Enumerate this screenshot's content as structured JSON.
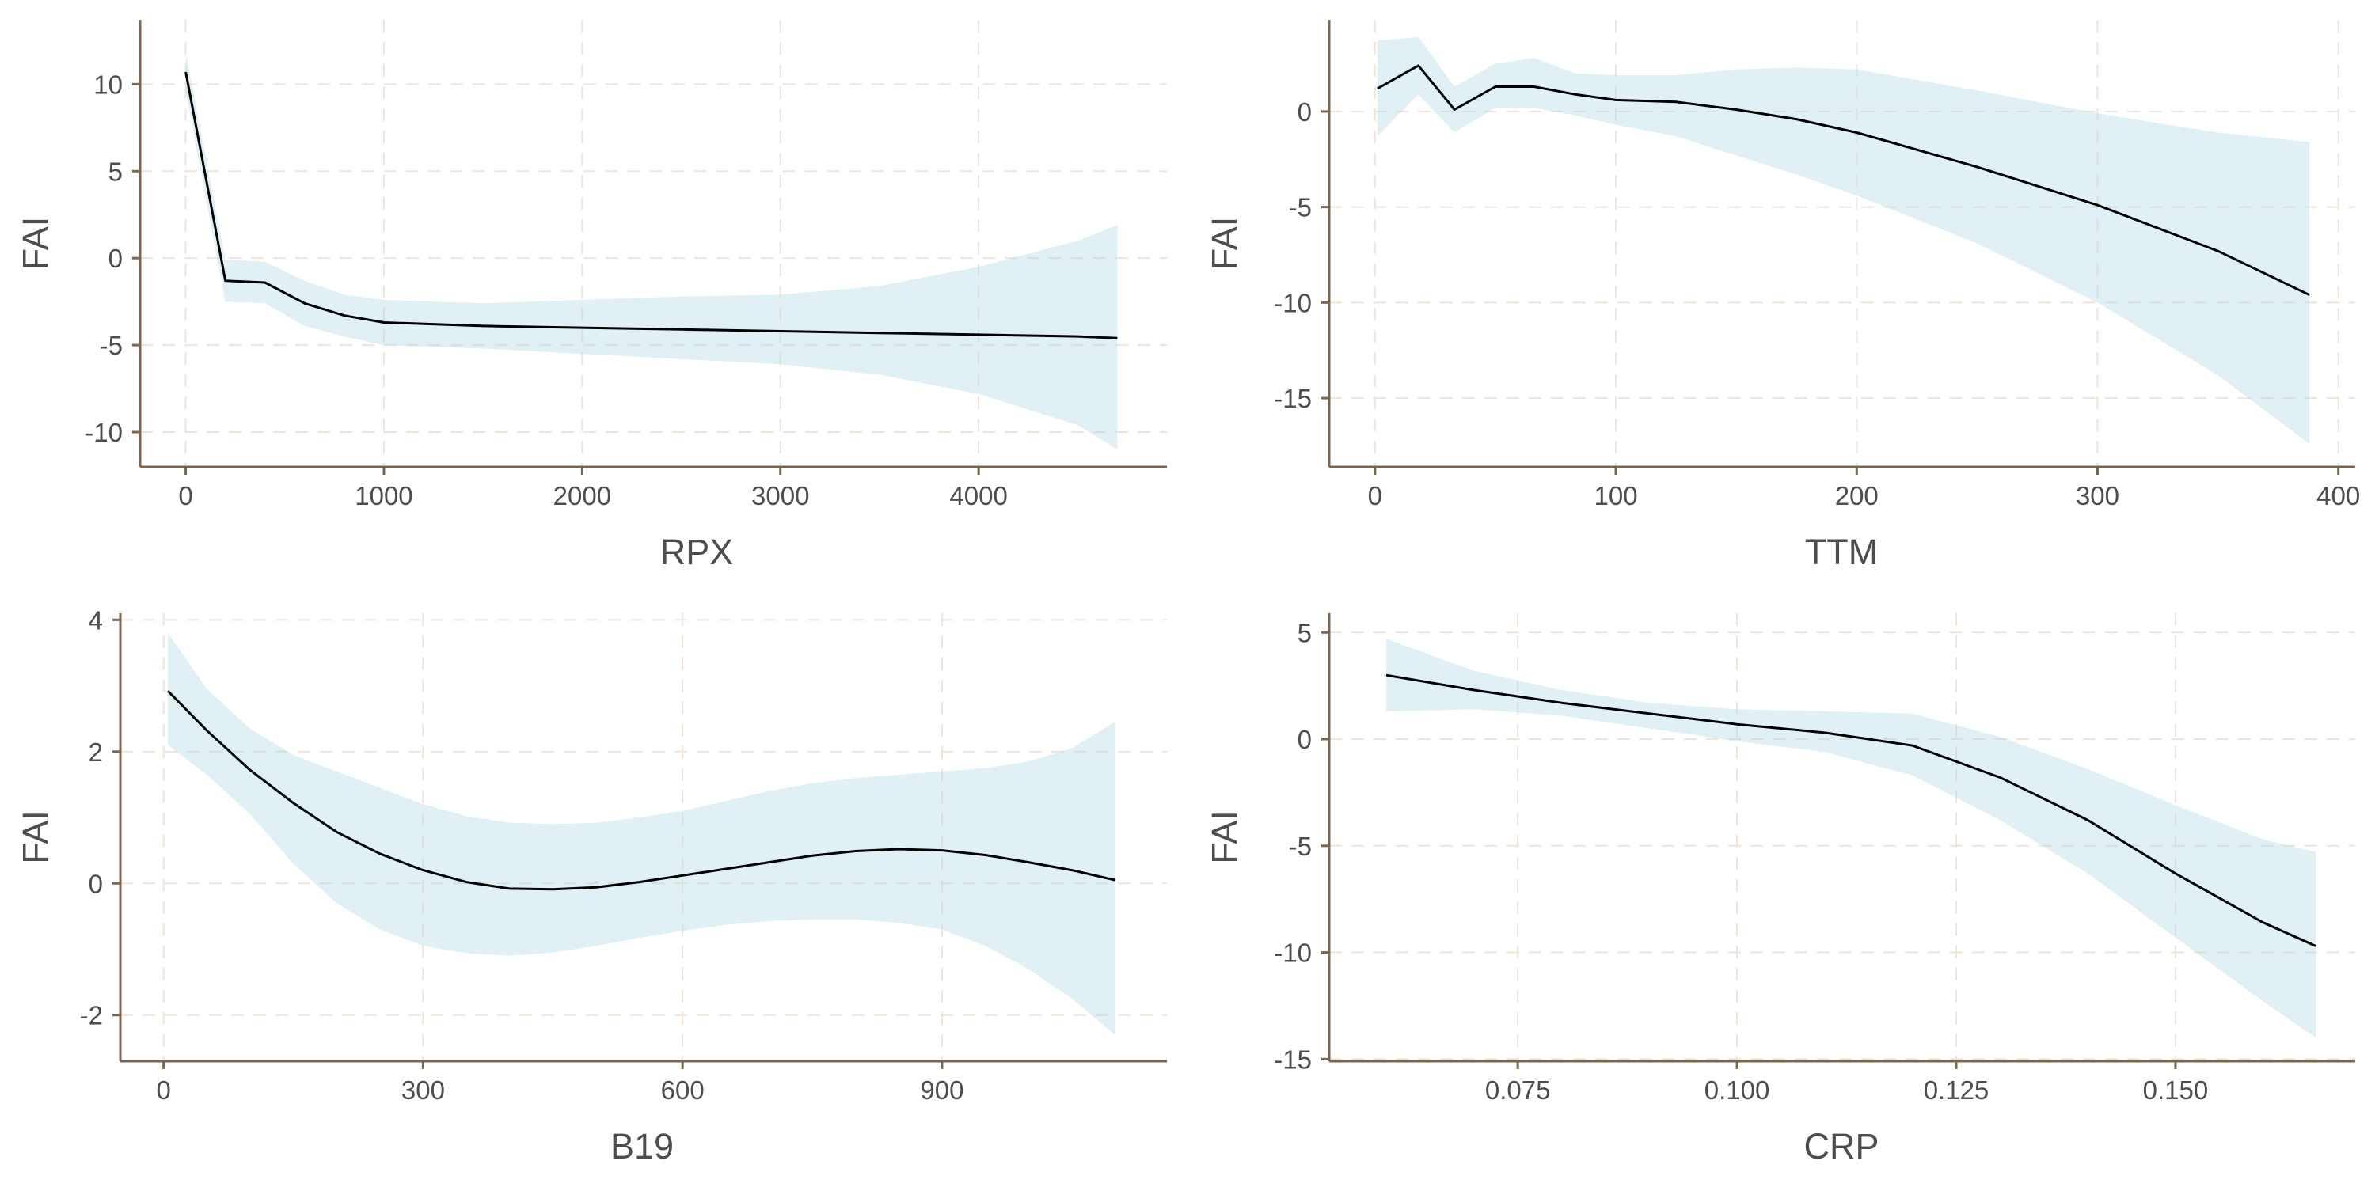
{
  "style": {
    "ribbon_color": "#add8e6",
    "ribbon_opacity": 0.38,
    "line_color": "#000000",
    "grid_color": "#f1e4d8",
    "axis_color": "#7a6650",
    "text_color": "#4d4d4d",
    "background": "#ffffff"
  },
  "chart_data": [
    {
      "type": "line",
      "title": "",
      "xlabel": "RPX",
      "ylabel": "FAI",
      "grid": true,
      "legend": "none",
      "xlim": [
        -230,
        4950
      ],
      "ylim": [
        -12,
        13.7
      ],
      "xticks": [
        0,
        1000,
        2000,
        3000,
        4000
      ],
      "xtick_labels": [
        "0",
        "1000",
        "2000",
        "3000",
        "4000"
      ],
      "yticks": [
        10,
        5,
        0,
        -5,
        -10
      ],
      "ytick_labels": [
        "10",
        "5",
        "0",
        "-5",
        "-10"
      ],
      "series": [
        {
          "x": [
            0,
            200,
            400,
            600,
            800,
            1000,
            1500,
            2000,
            2500,
            3000,
            3500,
            4000,
            4500,
            4700
          ],
          "y": [
            10.7,
            -1.3,
            -1.4,
            -2.6,
            -3.3,
            -3.7,
            -3.9,
            -4.0,
            -4.1,
            -4.2,
            -4.3,
            -4.4,
            -4.5,
            -4.6
          ],
          "lower": [
            9.6,
            -2.5,
            -2.6,
            -3.9,
            -4.5,
            -5.0,
            -5.2,
            -5.5,
            -5.8,
            -6.1,
            -6.7,
            -7.8,
            -9.6,
            -11.0
          ],
          "upper": [
            11.8,
            -0.1,
            -0.2,
            -1.3,
            -2.1,
            -2.4,
            -2.6,
            -2.4,
            -2.2,
            -2.1,
            -1.6,
            -0.5,
            1.0,
            1.9
          ]
        }
      ]
    },
    {
      "type": "line",
      "title": "",
      "xlabel": "TTM",
      "ylabel": "FAI",
      "grid": true,
      "legend": "none",
      "xlim": [
        -19,
        407
      ],
      "ylim": [
        -18.6,
        4.8
      ],
      "xticks": [
        0,
        100,
        200,
        300,
        400
      ],
      "xtick_labels": [
        "0",
        "100",
        "200",
        "300",
        "400"
      ],
      "yticks": [
        0,
        -5,
        -10,
        -15
      ],
      "ytick_labels": [
        "0",
        "-5",
        "-10",
        "-15"
      ],
      "series": [
        {
          "x": [
            1,
            18,
            33,
            50,
            66,
            83,
            100,
            125,
            150,
            175,
            200,
            250,
            300,
            350,
            388
          ],
          "y": [
            1.2,
            2.4,
            0.1,
            1.3,
            1.3,
            0.9,
            0.6,
            0.5,
            0.1,
            -0.4,
            -1.1,
            -2.9,
            -4.9,
            -7.3,
            -9.6
          ],
          "lower": [
            -1.3,
            0.9,
            -1.1,
            0.2,
            0.2,
            -0.2,
            -0.7,
            -1.3,
            -2.3,
            -3.3,
            -4.4,
            -6.9,
            -10.0,
            -13.8,
            -17.4
          ],
          "upper": [
            3.7,
            3.9,
            1.3,
            2.5,
            2.8,
            2.0,
            1.9,
            1.9,
            2.2,
            2.3,
            2.2,
            1.1,
            -0.1,
            -1.1,
            -1.6
          ]
        }
      ]
    },
    {
      "type": "line",
      "title": "",
      "xlabel": "B19",
      "ylabel": "FAI",
      "grid": true,
      "legend": "none",
      "xlim": [
        -50,
        1160
      ],
      "ylim": [
        -2.7,
        4.1
      ],
      "xticks": [
        0,
        300,
        600,
        900
      ],
      "xtick_labels": [
        "0",
        "300",
        "600",
        "900"
      ],
      "yticks": [
        4,
        2,
        0,
        -2
      ],
      "ytick_labels": [
        "4",
        "2",
        "0",
        "-2"
      ],
      "series": [
        {
          "x": [
            5,
            50,
            100,
            150,
            200,
            250,
            300,
            350,
            400,
            450,
            500,
            550,
            600,
            650,
            700,
            750,
            800,
            850,
            900,
            950,
            1000,
            1050,
            1100
          ],
          "y": [
            2.92,
            2.32,
            1.72,
            1.22,
            0.78,
            0.45,
            0.2,
            0.02,
            -0.08,
            -0.09,
            -0.06,
            0.02,
            0.12,
            0.22,
            0.32,
            0.42,
            0.49,
            0.52,
            0.5,
            0.43,
            0.32,
            0.2,
            0.05
          ],
          "lower": [
            2.1,
            1.65,
            1.05,
            0.3,
            -0.3,
            -0.7,
            -0.95,
            -1.06,
            -1.1,
            -1.05,
            -0.95,
            -0.83,
            -0.72,
            -0.63,
            -0.57,
            -0.55,
            -0.55,
            -0.6,
            -0.7,
            -0.95,
            -1.3,
            -1.75,
            -2.3
          ],
          "upper": [
            3.8,
            2.95,
            2.35,
            1.95,
            1.7,
            1.45,
            1.2,
            1.02,
            0.92,
            0.9,
            0.92,
            1.0,
            1.1,
            1.25,
            1.4,
            1.52,
            1.6,
            1.65,
            1.7,
            1.75,
            1.85,
            2.05,
            2.45
          ]
        }
      ]
    },
    {
      "type": "line",
      "title": "",
      "xlabel": "CRP",
      "ylabel": "FAI",
      "grid": true,
      "legend": "none",
      "xlim": [
        0.0535,
        0.1705
      ],
      "ylim": [
        -15.1,
        5.9
      ],
      "xticks": [
        0.075,
        0.1,
        0.125,
        0.15
      ],
      "xtick_labels": [
        "0.075",
        "0.100",
        "0.125",
        "0.150"
      ],
      "yticks": [
        5,
        0,
        -5,
        -10,
        -15
      ],
      "ytick_labels": [
        "5",
        "0",
        "-5",
        "-10",
        "-15"
      ],
      "series": [
        {
          "x": [
            0.06,
            0.07,
            0.08,
            0.09,
            0.1,
            0.11,
            0.12,
            0.13,
            0.14,
            0.15,
            0.16,
            0.166
          ],
          "y": [
            3.0,
            2.3,
            1.7,
            1.2,
            0.7,
            0.3,
            -0.3,
            -1.8,
            -3.8,
            -6.3,
            -8.6,
            -9.7
          ],
          "lower": [
            1.3,
            1.4,
            1.1,
            0.5,
            -0.1,
            -0.6,
            -1.7,
            -3.8,
            -6.3,
            -9.3,
            -12.3,
            -14.0
          ],
          "upper": [
            4.7,
            3.2,
            2.3,
            1.7,
            1.4,
            1.3,
            1.2,
            0.1,
            -1.4,
            -3.1,
            -4.7,
            -5.3
          ]
        }
      ]
    }
  ]
}
